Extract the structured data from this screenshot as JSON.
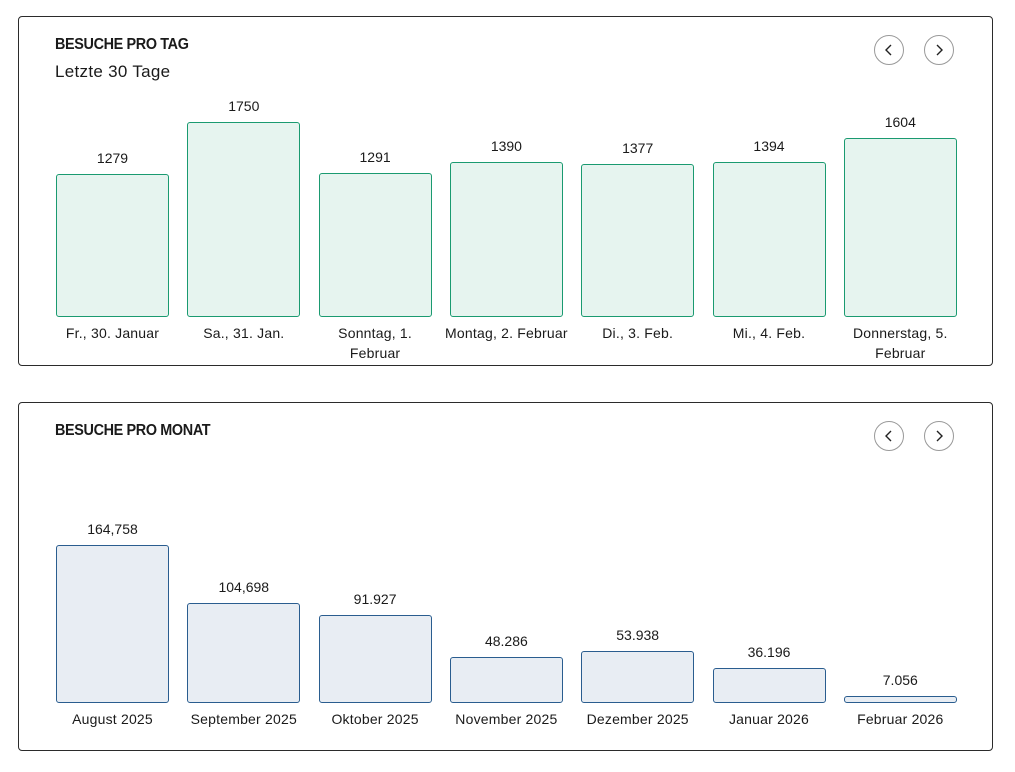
{
  "chart_data": [
    {
      "type": "bar",
      "title": "Besuche pro Tag",
      "subtitle": "Letzte 30 Tage",
      "categories": [
        "Fr., 30. Januar",
        "Sa., 31. Jan.",
        "Sonntag, 1. Februar",
        "Montag, 2. Februar",
        "Di., 3. Feb.",
        "Mi., 4. Feb.",
        "Donnerstag, 5. Februar"
      ],
      "values": [
        1279,
        1750,
        1291,
        1390,
        1377,
        1394,
        1604
      ],
      "color": "#1a9a70"
    },
    {
      "type": "bar",
      "title": "Besuche pro Monat",
      "categories": [
        "August 2025",
        "September 2025",
        "Oktober 2025",
        "November 2025",
        "Dezember 2025",
        "Januar 2026",
        "Februar 2026"
      ],
      "values": [
        164758,
        104698,
        91927,
        48286,
        53938,
        36196,
        7056
      ],
      "value_labels": [
        "164,758",
        "104,698",
        "91.927",
        "48.286",
        "53.938",
        "36.196",
        "7.056"
      ],
      "color": "#2a5d8f"
    }
  ]
}
